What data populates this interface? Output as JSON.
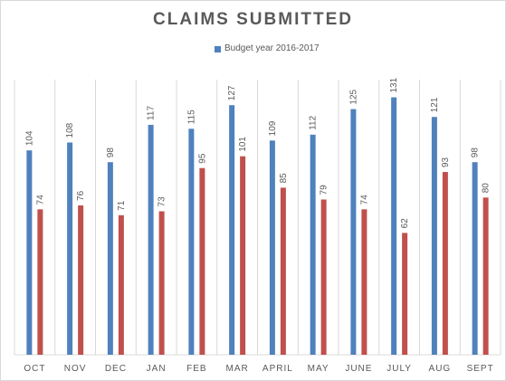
{
  "chart_data": {
    "type": "bar",
    "title": "CLAIMS SUBMITTED",
    "categories": [
      "OCT",
      "NOV",
      "DEC",
      "JAN",
      "FEB",
      "MAR",
      "APRIL",
      "MAY",
      "JUNE",
      "JULY",
      "AUG",
      "SEPT"
    ],
    "series": [
      {
        "name": "Budget year 2016-2017",
        "values": [
          104,
          108,
          98,
          117,
          115,
          127,
          109,
          112,
          125,
          131,
          121,
          98
        ],
        "color": "#4f81bd"
      },
      {
        "values": [
          74,
          76,
          71,
          73,
          95,
          101,
          85,
          79,
          74,
          62,
          93,
          80
        ],
        "color": "#c0504d"
      }
    ],
    "ylim": [
      0,
      140
    ],
    "grid": "vertical category separators",
    "legend_position": "top-center",
    "data_labels": true
  }
}
